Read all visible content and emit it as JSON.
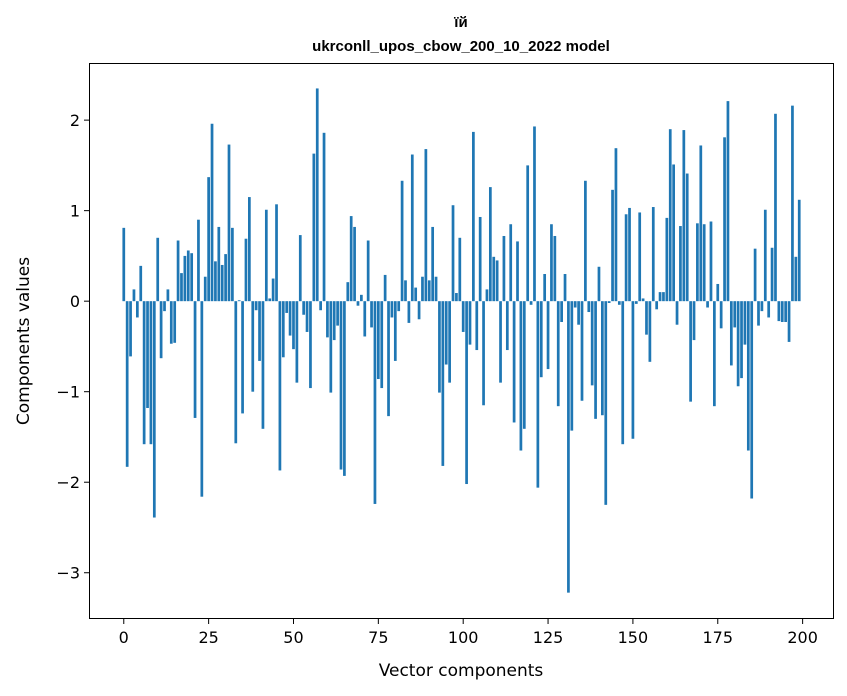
{
  "chart_data": {
    "type": "bar",
    "title": "їй",
    "subtitle": "ukrconll_upos_cbow_200_10_2022 model",
    "xlabel": "Vector components",
    "ylabel": "Components values",
    "xlim": [
      -9.95,
      208.95
    ],
    "ylim": [
      -3.5,
      2.62
    ],
    "xticks": [
      0,
      25,
      50,
      75,
      100,
      125,
      150,
      175,
      200
    ],
    "yticks": [
      -3,
      -2,
      -1,
      0,
      1,
      2
    ],
    "grid": false,
    "color": "#1f77b4",
    "x_start": 0,
    "values": [
      0.81,
      -1.83,
      -0.61,
      0.13,
      -0.18,
      0.39,
      -1.58,
      -1.18,
      -1.58,
      -2.39,
      0.7,
      -0.63,
      -0.11,
      0.13,
      -0.47,
      -0.46,
      0.67,
      0.31,
      0.5,
      0.56,
      0.53,
      -1.29,
      0.9,
      -2.16,
      0.27,
      1.37,
      1.96,
      0.44,
      0.82,
      0.4,
      0.52,
      1.73,
      0.81,
      -1.57,
      0.01,
      -1.24,
      0.69,
      1.15,
      -1.0,
      -0.1,
      -0.66,
      -1.41,
      1.01,
      0.03,
      0.25,
      1.07,
      -1.87,
      -0.62,
      -0.13,
      -0.38,
      -0.53,
      -0.9,
      0.73,
      -0.15,
      -0.34,
      -0.96,
      1.63,
      2.35,
      -0.1,
      1.86,
      -0.4,
      -1.01,
      -0.43,
      -0.27,
      -1.86,
      -1.93,
      0.21,
      0.94,
      0.82,
      -0.05,
      0.07,
      -0.39,
      0.67,
      -0.29,
      -2.24,
      -0.86,
      -0.96,
      0.29,
      -1.27,
      -0.18,
      -0.66,
      -0.11,
      1.33,
      0.23,
      -0.24,
      1.62,
      0.15,
      -0.2,
      0.27,
      1.68,
      0.23,
      0.82,
      0.27,
      -1.01,
      -1.82,
      -0.7,
      -0.9,
      1.06,
      0.09,
      0.7,
      -0.34,
      -2.02,
      -0.48,
      1.87,
      -0.54,
      0.93,
      -1.15,
      0.13,
      1.26,
      0.49,
      0.45,
      -0.9,
      0.72,
      -0.54,
      0.85,
      -1.34,
      0.66,
      -1.65,
      -1.41,
      1.5,
      -0.04,
      1.93,
      -2.06,
      -0.84,
      0.3,
      -0.75,
      0.85,
      0.72,
      -1.16,
      -0.23,
      0.3,
      -3.22,
      -1.43,
      -0.07,
      -0.26,
      -1.1,
      1.33,
      -0.12,
      -0.93,
      -1.3,
      0.38,
      -1.26,
      -2.25,
      -0.02,
      1.23,
      1.69,
      -0.04,
      -1.58,
      0.96,
      1.03,
      -1.52,
      -0.03,
      0.98,
      0.03,
      -0.37,
      -0.67,
      1.04,
      -0.09,
      0.1,
      0.1,
      0.92,
      1.9,
      1.51,
      -0.26,
      0.83,
      1.89,
      1.41,
      -1.11,
      -0.43,
      0.86,
      1.72,
      0.85,
      -0.07,
      0.88,
      -1.16,
      0.19,
      -0.3,
      1.81,
      2.21,
      -0.71,
      -0.29,
      -0.94,
      -0.85,
      -0.48,
      -1.65,
      -2.18,
      0.58,
      -0.27,
      -0.11,
      1.01,
      -0.18,
      0.59,
      2.07,
      -0.22,
      -0.23,
      -0.23,
      -0.45,
      2.16,
      0.49,
      1.12
    ]
  }
}
